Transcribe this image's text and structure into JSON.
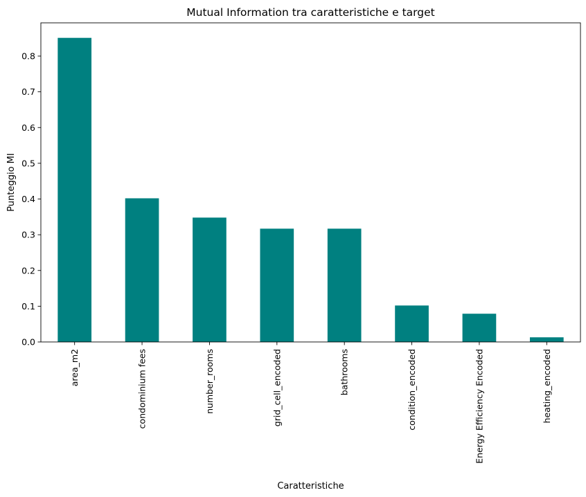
{
  "chart_data": {
    "type": "bar",
    "title": "Mutual Information tra caratteristiche e target",
    "xlabel": "Caratteristiche",
    "ylabel": "Punteggio MI",
    "categories": [
      "area_m2",
      "condominium fees",
      "number_rooms",
      "grid_cell_encoded",
      "bathrooms",
      "condition_encoded",
      "Energy Efficiency Encoded",
      "heating_encoded"
    ],
    "values": [
      0.851,
      0.402,
      0.348,
      0.317,
      0.317,
      0.102,
      0.079,
      0.013
    ],
    "ylim": [
      0,
      0.893
    ],
    "yticks": [
      "0.0",
      "0.1",
      "0.2",
      "0.3",
      "0.4",
      "0.5",
      "0.6",
      "0.7",
      "0.8"
    ],
    "bar_color": "#008080",
    "grid": false,
    "legend": "none"
  }
}
